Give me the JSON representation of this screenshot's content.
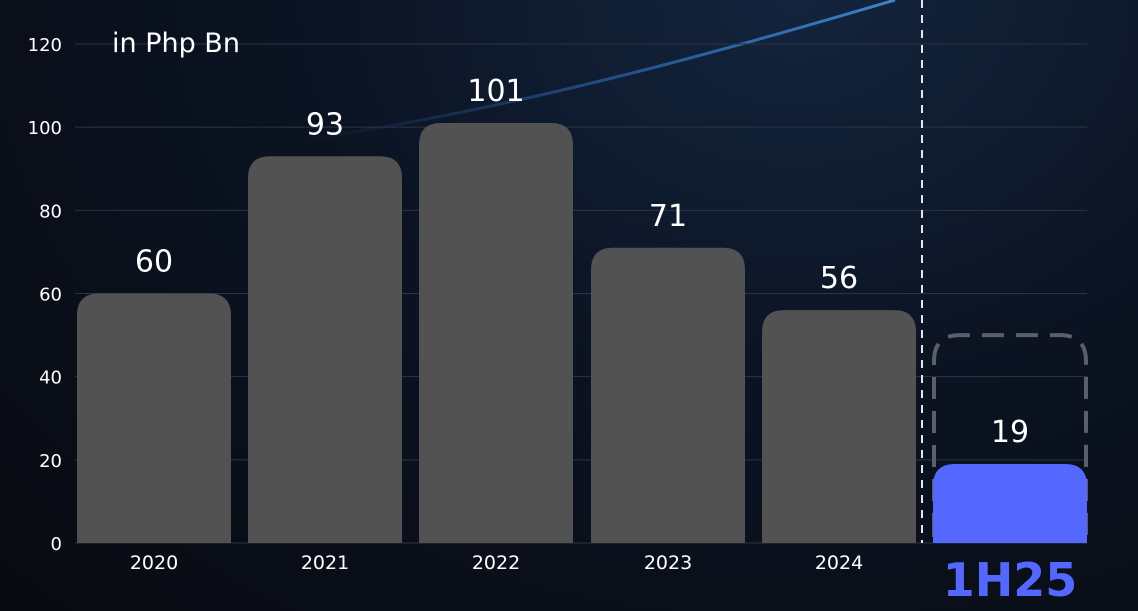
{
  "chart_data": {
    "type": "bar",
    "unit_label": "in Php Bn",
    "categories": [
      "2020",
      "2021",
      "2022",
      "2023",
      "2024",
      "1H25"
    ],
    "values": [
      60,
      93,
      101,
      71,
      56,
      19
    ],
    "data_labels": [
      "60",
      "93",
      "101",
      "71",
      "56",
      "19"
    ],
    "yticks": [
      0,
      20,
      40,
      60,
      80,
      100,
      120
    ],
    "ylim": [
      0,
      120
    ],
    "grid": true,
    "highlight": {
      "category": "1H25",
      "outline_value": 50
    },
    "colors": {
      "bar": "#525252",
      "highlight_bar": "#5468ff",
      "highlight_label": "#5468ff",
      "grid": "#2a3444",
      "outline": "#5a5f6a",
      "text": "#ffffff"
    }
  }
}
